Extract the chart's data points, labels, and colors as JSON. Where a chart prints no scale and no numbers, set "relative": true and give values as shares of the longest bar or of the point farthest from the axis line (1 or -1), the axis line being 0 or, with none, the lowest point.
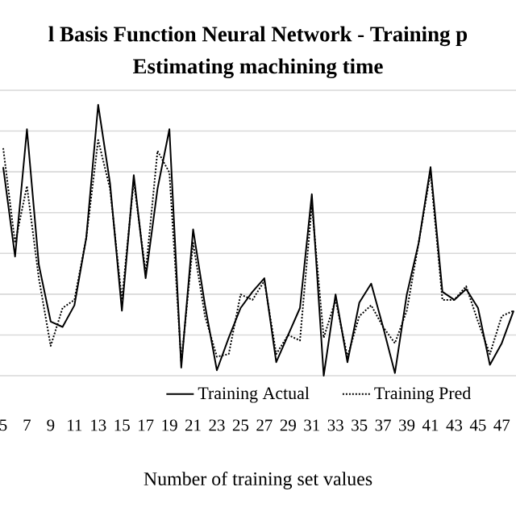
{
  "chart_data": {
    "type": "line",
    "title": "l Basis Function Neural Network - Training p",
    "subtitle": "Estimating machining time",
    "xlabel": "Number of training set values",
    "relative": true,
    "grid": "y",
    "legend": "bottom",
    "categories": [
      "5",
      null,
      "7",
      null,
      "9",
      null,
      "11",
      null,
      "13",
      null,
      "15",
      null,
      "17",
      null,
      "19",
      null,
      "21",
      null,
      "23",
      null,
      "25",
      null,
      "27",
      null,
      "29",
      null,
      "31",
      null,
      "33",
      null,
      "35",
      null,
      "37",
      null,
      "39",
      null,
      "41",
      null,
      "43",
      null,
      "45",
      null,
      "47",
      null
    ],
    "series": [
      {
        "name": "Training Actual",
        "color": "#000000",
        "line_style": "solid",
        "values": [
          0.77,
          0.44,
          0.91,
          0.41,
          0.2,
          0.18,
          0.26,
          0.51,
          1.0,
          0.71,
          0.24,
          0.74,
          0.36,
          0.69,
          0.91,
          0.03,
          0.54,
          0.26,
          0.02,
          0.14,
          0.25,
          0.31,
          0.36,
          0.05,
          0.15,
          0.25,
          0.67,
          0.0,
          0.3,
          0.05,
          0.27,
          0.34,
          0.18,
          0.01,
          0.3,
          0.49,
          0.77,
          0.31,
          0.28,
          0.32,
          0.25,
          0.04,
          0.12,
          0.24
        ]
      },
      {
        "name": "Training Pred",
        "color": "#000000",
        "line_style": "dotted",
        "values": [
          0.84,
          0.49,
          0.7,
          0.36,
          0.11,
          0.25,
          0.28,
          0.51,
          0.87,
          0.69,
          0.28,
          0.72,
          0.38,
          0.83,
          0.75,
          0.05,
          0.49,
          0.22,
          0.07,
          0.08,
          0.3,
          0.28,
          0.35,
          0.08,
          0.15,
          0.13,
          0.63,
          0.14,
          0.28,
          0.07,
          0.22,
          0.26,
          0.18,
          0.12,
          0.24,
          0.49,
          0.75,
          0.28,
          0.28,
          0.33,
          0.2,
          0.08,
          0.22,
          0.24
        ]
      }
    ]
  }
}
